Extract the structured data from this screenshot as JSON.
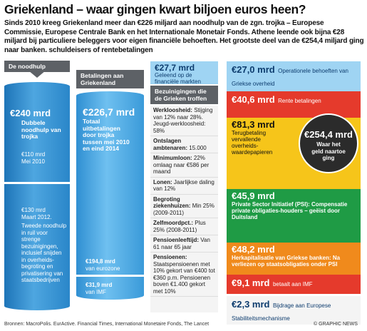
{
  "title": "Griekenland – waar gingen kwart biljoen euros heen?",
  "intro": "Sinds 2010 kreeg Griekenland meer dan €226 miljard aan noodhulp van de zgn. trojka – Europese Commissie, Europese Centrale Bank en het Internationale Monetair Fonds. Athene leende ook bijna €28 miljard bij particuliere beleggers voor eigen financiële behoeften. Het grootste deel van de €254,4 miljard ging naar banken. schuldeisers of rentebetalingen",
  "aid": {
    "header": "De noodhulp",
    "total": "€240 mrd",
    "total_label": "Dubbele noodhulp van trojka",
    "first": "€110 mrd",
    "first_label": "Mei 2010",
    "second": "€130 mrd",
    "second_label": "Maart 2012.",
    "second_text": "Tweede noodhulp in ruil voor strenge bezuinigingen, inclusief snijden in overheids-begroting en privatisering van staatsbedrijven"
  },
  "payments": {
    "header": "Betalingen aan Griekenland",
    "total": "€226,7 mrd",
    "total_label": "Totaal uitbetalingen door trojka tussen mei 2010 en eind 2014",
    "eurozone": "€194,8 mrd",
    "eurozone_label": "van eurozone",
    "imf": "€31,9 mrd",
    "imf_label": "van IMF"
  },
  "markets": {
    "amount": "€27,7 mrd",
    "label": "Geleend op de financiële markten"
  },
  "austerity": {
    "header": "Bezuinigingen die de Grieken troffen",
    "items": [
      {
        "term": "Werkloosheid:",
        "text": "Stijging van 12% naar 28%. Jeugd-werkloosheid: 58%"
      },
      {
        "term": "Ontslagen ambtenaren:",
        "text": "15.000"
      },
      {
        "term": "Minimumloon:",
        "text": "22% omlaag naar €586 per maand"
      },
      {
        "term": "Lonen:",
        "text": "Jaarlijkse daling van 12%"
      },
      {
        "term": "Begroting ziekenhuizen:",
        "text": "Min 25% (2009-2011)"
      },
      {
        "term": "Zelfmoordpct.:",
        "text": "Plus 25% (2008-2011)"
      },
      {
        "term": "Pensioenleeftijd:",
        "text": "Van 61 naar 65 jaar"
      },
      {
        "term": "Pensioenen:",
        "text": "Staatspensioenen met 10% gekort van €400 tot €360 p.m. Pensioenen boven €1.400 gekort met 10%"
      }
    ]
  },
  "spending": {
    "total": "€254,4 mrd",
    "total_label": "Waar het geld naartoe ging",
    "items": [
      {
        "amount": "€27,0 mrd",
        "label": "Operationele behoeften van Griekse overheid"
      },
      {
        "amount": "€40,6 mrd",
        "label": "Rente betalingen"
      },
      {
        "amount": "€81,3 mrd",
        "label": "Terugbetaling vervallende overheids-waardepapieren"
      },
      {
        "amount": "€45,9 mrd",
        "label": "Private Sector Initiatief (PSI): Compensatie private obligaties-houders – geëist door Duitsland"
      },
      {
        "amount": "€48,2 mrd",
        "label": "Herkapitalisatie van Griekse banken: Na verliezen op staatsobligaties onder PSI"
      },
      {
        "amount": "€9,1 mrd",
        "label": "betaalt aan IMF"
      },
      {
        "amount": "€2,3 mrd",
        "label": "Bijdrage aan Europese Stabiliteitsmechanisme"
      }
    ]
  },
  "footer": {
    "sources": "Bronnen: MacroPolis. EurActive. Financial Times, International Monetaire Fonds, The Lancet",
    "credit": "© GRAPHIC NEWS"
  }
}
